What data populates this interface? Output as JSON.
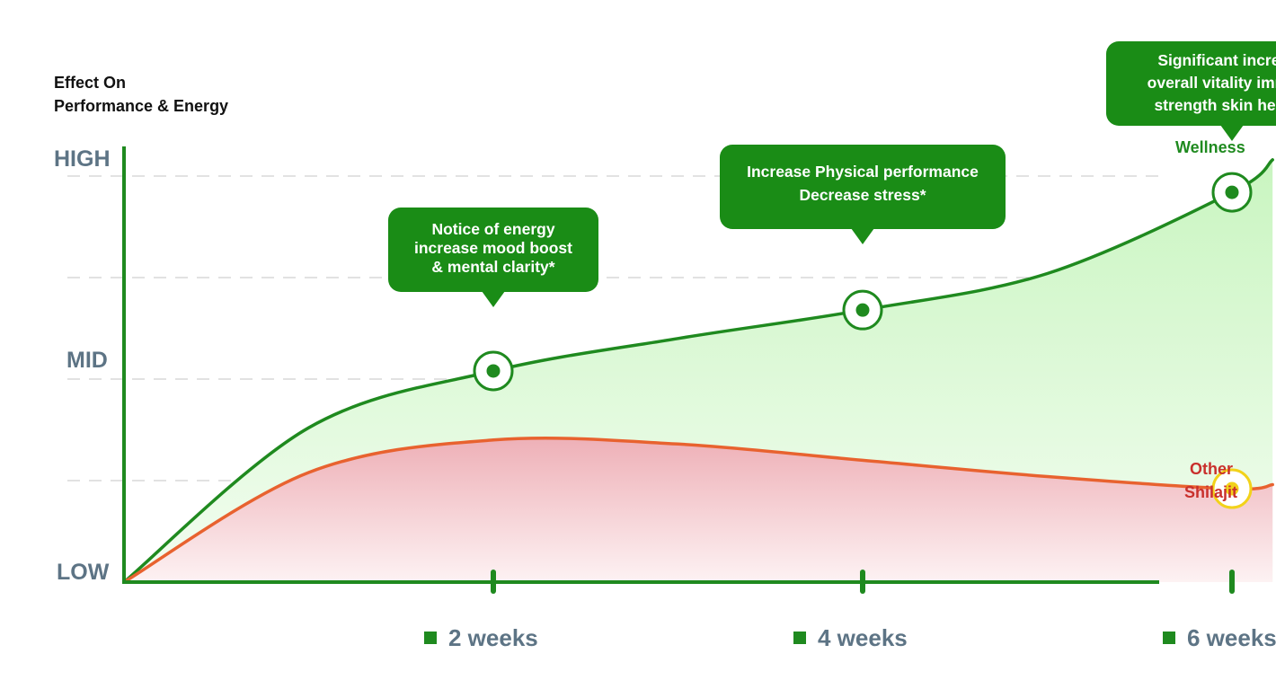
{
  "chart_data": {
    "type": "area",
    "title": "",
    "ylabel": "Effect On Performance & Energy",
    "ylabel_lines": [
      "Effect On",
      "Performance & Energy"
    ],
    "y_levels": [
      "LOW",
      "MID",
      "HIGH"
    ],
    "x_categories": [
      "2 weeks",
      "4 weeks",
      "6 weeks"
    ],
    "grid": "dashed horizontal",
    "series": [
      {
        "name": "Wellness",
        "color": "#1f8a1f",
        "fill": "#d6f7cf",
        "points": [
          {
            "x": 0,
            "y": 0.0
          },
          {
            "x": 0.5,
            "y": 0.38
          },
          {
            "x": 1.0,
            "y": 0.52
          },
          {
            "x": 1.5,
            "y": 0.6
          },
          {
            "x": 2.0,
            "y": 0.67
          },
          {
            "x": 2.5,
            "y": 0.76
          },
          {
            "x": 3.0,
            "y": 0.96
          },
          {
            "x": 3.11,
            "y": 1.04
          }
        ],
        "markers": [
          {
            "x": 1,
            "y": 0.52
          },
          {
            "x": 2,
            "y": 0.67
          },
          {
            "x": 3,
            "y": 0.96
          }
        ]
      },
      {
        "name": "Other Shilajit",
        "name_lines": [
          "Other",
          "Shilajit"
        ],
        "color": "#e8622f",
        "fill": "#f0b7bd",
        "points": [
          {
            "x": 0,
            "y": 0.0
          },
          {
            "x": 0.5,
            "y": 0.27
          },
          {
            "x": 1.0,
            "y": 0.35
          },
          {
            "x": 1.5,
            "y": 0.34
          },
          {
            "x": 2.0,
            "y": 0.3
          },
          {
            "x": 2.5,
            "y": 0.26
          },
          {
            "x": 3.0,
            "y": 0.23
          },
          {
            "x": 3.11,
            "y": 0.24
          }
        ],
        "markers": [
          {
            "x": 3,
            "y": 0.23
          }
        ]
      }
    ],
    "annotations": [
      {
        "x": 1,
        "lines": [
          "Notice of energy",
          "increase mood boost",
          "& mental clarity*"
        ]
      },
      {
        "x": 2,
        "lines": [
          "Increase Physical performance",
          "Decrease stress*"
        ]
      },
      {
        "x": 3,
        "lines": [
          "Significant increase",
          "overall vitality immune",
          "strength skin health*"
        ]
      }
    ],
    "colors": {
      "axis": "#1f8a1f",
      "callout": "#1a8c16",
      "level_text": "#5d7485",
      "grid": "#e2e2e2",
      "marker_gold": "#f2d21a"
    }
  }
}
